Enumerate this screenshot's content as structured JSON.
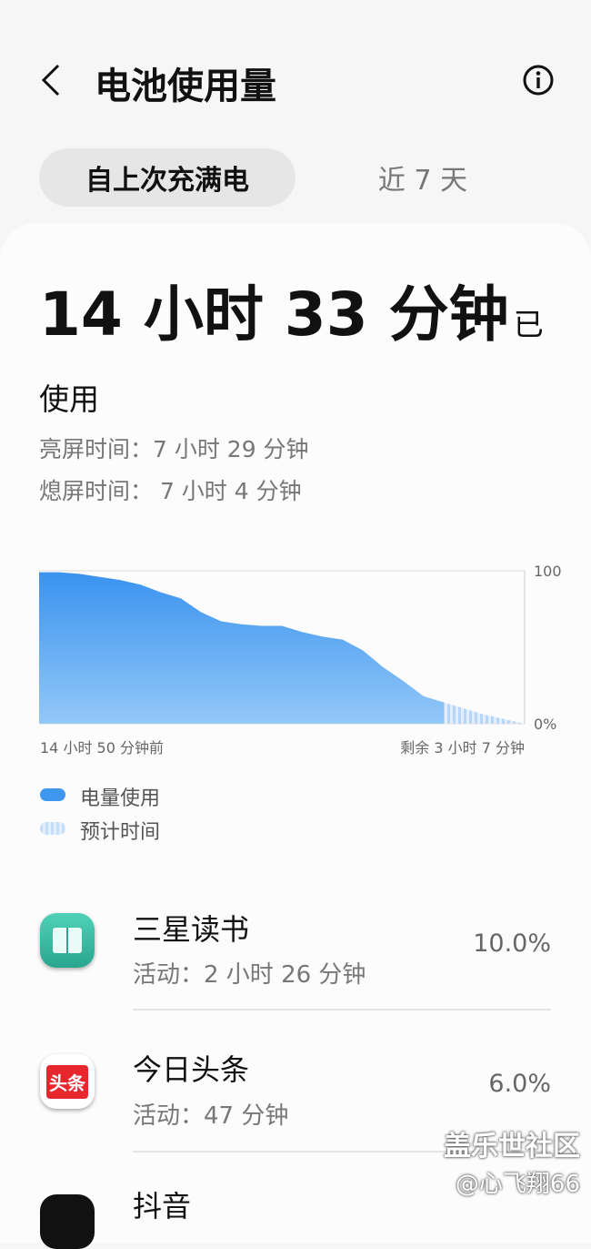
{
  "header": {
    "title": "电池使用量"
  },
  "tabs": [
    "自上次充满电",
    "近 7 天"
  ],
  "summary": {
    "total_used": "14 小时 33 分钟",
    "used_suffix": "已使用",
    "screen_on": "亮屏时间：7 小时 29 分钟",
    "screen_off": "熄屏时间： 7 小时 4 分钟"
  },
  "chart_data": {
    "type": "area",
    "categories": [
      null,
      null,
      null,
      null,
      null,
      null,
      null,
      null,
      null,
      null,
      null,
      null,
      null,
      null,
      null,
      null,
      null,
      null,
      null,
      null,
      null,
      null,
      null,
      null,
      null
    ],
    "series": [
      {
        "name": "电量使用",
        "color": "#3f97f0",
        "values": [
          99,
          99,
          98,
          96,
          94,
          91,
          86,
          82,
          73,
          67,
          65,
          64,
          64,
          60,
          57,
          55,
          48,
          37,
          28,
          18,
          14,
          null,
          null,
          null,
          null
        ]
      },
      {
        "name": "预计时间",
        "color": "#c4def9",
        "values": [
          null,
          null,
          null,
          null,
          null,
          null,
          null,
          null,
          null,
          null,
          null,
          null,
          null,
          null,
          null,
          null,
          null,
          null,
          null,
          null,
          14,
          10,
          6,
          3,
          0
        ]
      }
    ],
    "ylim": [
      0,
      100
    ],
    "yticks": [
      {
        "value": 0,
        "label": "0%"
      },
      100
    ],
    "x_start_label": "14 小时 50 分钟前",
    "x_end_label": "剩余 3 小时 7 分钟"
  },
  "apps": [
    {
      "name": "三星读书",
      "activity": "活动：2 小时 26 分钟",
      "percent": "10.0%"
    },
    {
      "name": "今日头条",
      "icon_label": "头条",
      "activity": "活动：47 分钟",
      "percent": "6.0%"
    },
    {
      "name": "抖音"
    }
  ],
  "watermark": {
    "site": "盖乐世社区",
    "user": "@心飞翔66"
  }
}
